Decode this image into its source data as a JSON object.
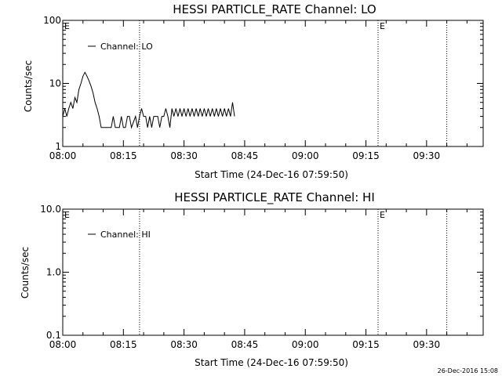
{
  "stamp": "26-Dec-2016 15:08",
  "chart_data": [
    {
      "type": "line",
      "title": "HESSI PARTICLE_RATE Channel: LO",
      "xlabel": "Start Time (24-Dec-16 07:59:50)",
      "ylabel": "Counts/sec",
      "y_scale": "log",
      "ylim": [
        1,
        100
      ],
      "y_ticks": [
        1,
        10,
        100
      ],
      "y_tick_labels": [
        "1",
        "10",
        "100"
      ],
      "xlim_minutes_after_0800": [
        0,
        104
      ],
      "x_tick_labels": [
        "08:00",
        "08:15",
        "08:30",
        "08:45",
        "09:00",
        "09:15",
        "09:30"
      ],
      "event_lines": [
        "08:19",
        "09:18",
        "09:35"
      ],
      "event_markers": [
        {
          "time": "08:00",
          "label": "E"
        },
        {
          "time": "09:18",
          "label": "E"
        }
      ],
      "legend": {
        "entries": [
          "Channel: LO"
        ],
        "placement": "top-left"
      },
      "grid": false,
      "series": [
        {
          "name": "Channel: LO",
          "color": "#000000",
          "points": [
            [
              0,
              3
            ],
            [
              0.5,
              4
            ],
            [
              1,
              3
            ],
            [
              1.5,
              4
            ],
            [
              2,
              5
            ],
            [
              2.5,
              4
            ],
            [
              3,
              6
            ],
            [
              3.5,
              5
            ],
            [
              4,
              8
            ],
            [
              4.5,
              10
            ],
            [
              5,
              13
            ],
            [
              5.5,
              15
            ],
            [
              6,
              13
            ],
            [
              6.5,
              11
            ],
            [
              7,
              9
            ],
            [
              7.5,
              7
            ],
            [
              8,
              5
            ],
            [
              8.5,
              4
            ],
            [
              9,
              3
            ],
            [
              9.5,
              2
            ],
            [
              10,
              2
            ],
            [
              11,
              2
            ],
            [
              12,
              2
            ],
            [
              12.5,
              3
            ],
            [
              13,
              2
            ],
            [
              14,
              2
            ],
            [
              14.5,
              3
            ],
            [
              15,
              2
            ],
            [
              15.5,
              2
            ],
            [
              16,
              3
            ],
            [
              16.5,
              3
            ],
            [
              17,
              2
            ],
            [
              18,
              3
            ],
            [
              18.5,
              2
            ],
            [
              19,
              3
            ],
            [
              19.5,
              4
            ],
            [
              20,
              3
            ],
            [
              20.5,
              3
            ],
            [
              21,
              2
            ],
            [
              21.5,
              3
            ],
            [
              22,
              2
            ],
            [
              22.5,
              3
            ],
            [
              23,
              3
            ],
            [
              23.5,
              3
            ],
            [
              24,
              2
            ],
            [
              24.5,
              3
            ],
            [
              25,
              3
            ],
            [
              25.5,
              4
            ],
            [
              26,
              3
            ],
            [
              26.5,
              2
            ],
            [
              27,
              4
            ],
            [
              27.5,
              3
            ],
            [
              28,
              4
            ],
            [
              28.5,
              3
            ],
            [
              29,
              4
            ],
            [
              29.5,
              3
            ],
            [
              30,
              4
            ],
            [
              30.5,
              3
            ],
            [
              31,
              4
            ],
            [
              31.5,
              3
            ],
            [
              32,
              4
            ],
            [
              32.5,
              3
            ],
            [
              33,
              4
            ],
            [
              33.5,
              3
            ],
            [
              34,
              4
            ],
            [
              34.5,
              3
            ],
            [
              35,
              4
            ],
            [
              35.5,
              3
            ],
            [
              36,
              4
            ],
            [
              36.5,
              3
            ],
            [
              37,
              4
            ],
            [
              37.5,
              3
            ],
            [
              38,
              4
            ],
            [
              38.5,
              3
            ],
            [
              39,
              4
            ],
            [
              39.5,
              3
            ],
            [
              40,
              4
            ],
            [
              40.5,
              3
            ],
            [
              41,
              4
            ],
            [
              41.5,
              3
            ],
            [
              42,
              5
            ],
            [
              42.5,
              3
            ]
          ]
        }
      ]
    },
    {
      "type": "line",
      "title": "HESSI PARTICLE_RATE Channel: HI",
      "xlabel": "Start Time (24-Dec-16 07:59:50)",
      "ylabel": "Counts/sec",
      "y_scale": "log",
      "ylim": [
        0.1,
        10
      ],
      "y_ticks": [
        0.1,
        1,
        10
      ],
      "y_tick_labels": [
        "0.1",
        "1.0",
        "10.0"
      ],
      "xlim_minutes_after_0800": [
        0,
        104
      ],
      "x_tick_labels": [
        "08:00",
        "08:15",
        "08:30",
        "08:45",
        "09:00",
        "09:15",
        "09:30"
      ],
      "event_lines": [
        "08:19",
        "09:18",
        "09:35"
      ],
      "event_markers": [
        {
          "time": "08:00",
          "label": "E"
        },
        {
          "time": "09:18",
          "label": "E"
        }
      ],
      "legend": {
        "entries": [
          "Channel: HI"
        ],
        "placement": "top-left"
      },
      "grid": false,
      "series": [
        {
          "name": "Channel: HI",
          "color": "#000000",
          "points": []
        }
      ]
    }
  ]
}
